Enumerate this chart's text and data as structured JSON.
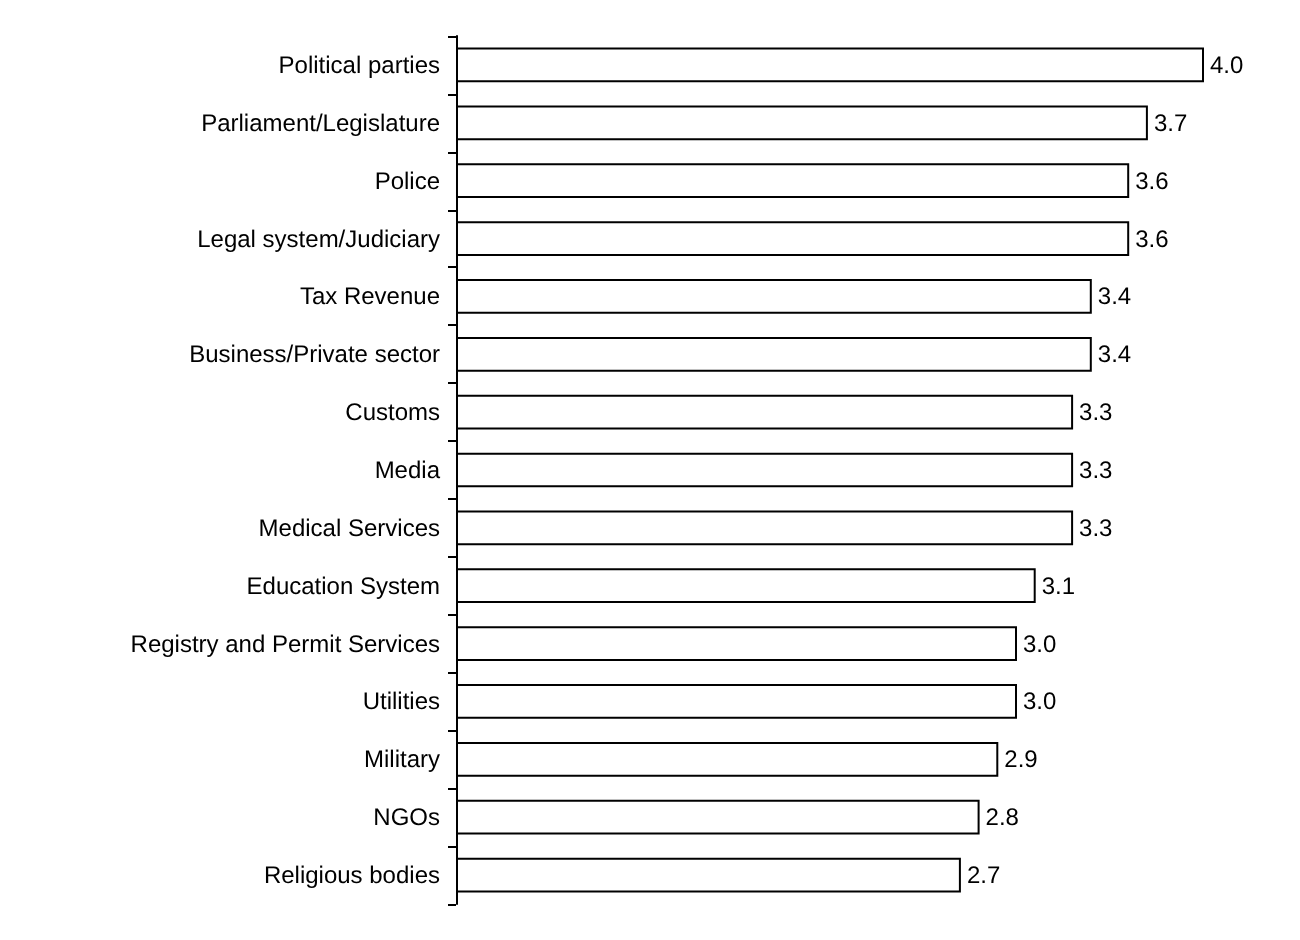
{
  "chart_data": {
    "type": "bar",
    "orientation": "horizontal",
    "categories": [
      "Political parties",
      "Parliament/Legislature",
      "Police",
      "Legal system/Judiciary",
      "Tax Revenue",
      "Business/Private sector",
      "Customs",
      "Media",
      "Medical Services",
      "Education System",
      "Registry and Permit Services",
      "Utilities",
      "Military",
      "NGOs",
      "Religious bodies"
    ],
    "values": [
      4.0,
      3.7,
      3.6,
      3.6,
      3.4,
      3.4,
      3.3,
      3.3,
      3.3,
      3.1,
      3.0,
      3.0,
      2.9,
      2.8,
      2.7
    ],
    "value_labels": [
      "4.0",
      "3.7",
      "3.6",
      "3.6",
      "3.4",
      "3.4",
      "3.3",
      "3.3",
      "3.3",
      "3.1",
      "3.0",
      "3.0",
      "2.9",
      "2.8",
      "2.7"
    ],
    "color": "#ffffff",
    "tick_labels": "y"
  }
}
